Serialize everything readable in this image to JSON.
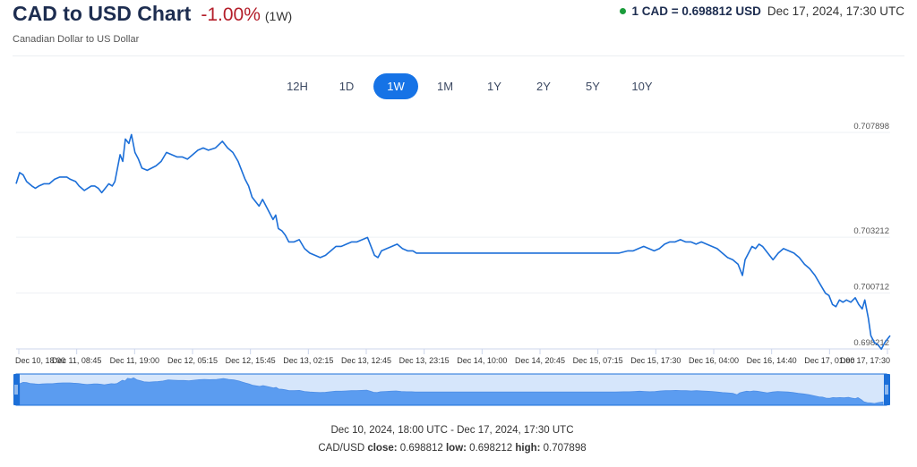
{
  "header": {
    "title": "CAD to USD Chart",
    "change": "-1.00%",
    "period": "(1W)",
    "subtitle": "Canadian Dollar to US Dollar",
    "rate": "1 CAD = 0.698812 USD",
    "timestamp": "Dec 17, 2024, 17:30 UTC"
  },
  "range_buttons": [
    {
      "label": "12H"
    },
    {
      "label": "1D"
    },
    {
      "label": "1W",
      "active": true
    },
    {
      "label": "1M"
    },
    {
      "label": "1Y"
    },
    {
      "label": "2Y"
    },
    {
      "label": "5Y"
    },
    {
      "label": "10Y"
    }
  ],
  "colors": {
    "line": "#1c6fd8",
    "navigator_fill": "#5b9cf0",
    "navigator_bg": "#d6e6fb",
    "active_button": "#1673e6",
    "negative_change": "#b41e2a",
    "live_dot": "#1a9c3a"
  },
  "footer": {
    "range": "Dec 10, 2024, 18:00 UTC - Dec 17, 2024, 17:30 UTC",
    "pair": "CAD/USD",
    "close_label": "close:",
    "close": "0.698812",
    "low_label": "low:",
    "low": "0.698212",
    "high_label": "high:",
    "high": "0.707898"
  },
  "chart_data": {
    "type": "line",
    "series": [
      {
        "name": "CAD/USD"
      }
    ],
    "x_tick_labels": [
      "Dec 10, 18:00",
      "Dec 11, 08:45",
      "Dec 11, 19:00",
      "Dec 12, 05:15",
      "Dec 12, 15:45",
      "Dec 13, 02:15",
      "Dec 13, 12:45",
      "Dec 13, 23:15",
      "Dec 14, 10:00",
      "Dec 14, 20:45",
      "Dec 15, 07:15",
      "Dec 15, 17:30",
      "Dec 16, 04:00",
      "Dec 16, 14:40",
      "Dec 17, 01:00",
      "Dec 17, 17:30"
    ],
    "y_tick_labels": [
      "0.707898",
      "0.703212",
      "0.700712",
      "0.698212"
    ],
    "ylim": [
      0.698212,
      0.707898
    ],
    "grid": true,
    "points": [
      [
        0,
        0.7056
      ],
      [
        0.004,
        0.7061
      ],
      [
        0.008,
        0.706
      ],
      [
        0.012,
        0.7057
      ],
      [
        0.018,
        0.7055
      ],
      [
        0.022,
        0.7054
      ],
      [
        0.026,
        0.7055
      ],
      [
        0.032,
        0.7056
      ],
      [
        0.038,
        0.7056
      ],
      [
        0.044,
        0.7058
      ],
      [
        0.05,
        0.7059
      ],
      [
        0.054,
        0.7059
      ],
      [
        0.058,
        0.7059
      ],
      [
        0.062,
        0.7058
      ],
      [
        0.068,
        0.7057
      ],
      [
        0.072,
        0.7055
      ],
      [
        0.075,
        0.7054
      ],
      [
        0.078,
        0.7053
      ],
      [
        0.082,
        0.7054
      ],
      [
        0.086,
        0.7055
      ],
      [
        0.09,
        0.7055
      ],
      [
        0.094,
        0.7054
      ],
      [
        0.098,
        0.7052
      ],
      [
        0.102,
        0.7054
      ],
      [
        0.106,
        0.7056
      ],
      [
        0.11,
        0.7055
      ],
      [
        0.113,
        0.7057
      ],
      [
        0.116,
        0.7063
      ],
      [
        0.119,
        0.7069
      ],
      [
        0.122,
        0.7066
      ],
      [
        0.125,
        0.7076
      ],
      [
        0.129,
        0.7074
      ],
      [
        0.132,
        0.7078
      ],
      [
        0.136,
        0.707
      ],
      [
        0.14,
        0.7067
      ],
      [
        0.144,
        0.7063
      ],
      [
        0.15,
        0.7062
      ],
      [
        0.155,
        0.7063
      ],
      [
        0.16,
        0.7064
      ],
      [
        0.166,
        0.7066
      ],
      [
        0.172,
        0.707
      ],
      [
        0.178,
        0.7069
      ],
      [
        0.184,
        0.7068
      ],
      [
        0.19,
        0.7068
      ],
      [
        0.196,
        0.7067
      ],
      [
        0.202,
        0.7069
      ],
      [
        0.208,
        0.7071
      ],
      [
        0.214,
        0.7072
      ],
      [
        0.22,
        0.7071
      ],
      [
        0.228,
        0.7072
      ],
      [
        0.236,
        0.7075
      ],
      [
        0.242,
        0.7072
      ],
      [
        0.248,
        0.707
      ],
      [
        0.254,
        0.7066
      ],
      [
        0.258,
        0.7062
      ],
      [
        0.262,
        0.7058
      ],
      [
        0.266,
        0.7055
      ],
      [
        0.27,
        0.705
      ],
      [
        0.274,
        0.7048
      ],
      [
        0.278,
        0.7046
      ],
      [
        0.282,
        0.7049
      ],
      [
        0.286,
        0.7046
      ],
      [
        0.29,
        0.7043
      ],
      [
        0.294,
        0.704
      ],
      [
        0.297,
        0.7042
      ],
      [
        0.3,
        0.7036
      ],
      [
        0.304,
        0.7035
      ],
      [
        0.308,
        0.7033
      ],
      [
        0.312,
        0.703
      ],
      [
        0.318,
        0.703
      ],
      [
        0.324,
        0.7031
      ],
      [
        0.33,
        0.7027
      ],
      [
        0.336,
        0.7025
      ],
      [
        0.342,
        0.7024
      ],
      [
        0.348,
        0.7023
      ],
      [
        0.354,
        0.7024
      ],
      [
        0.36,
        0.7026
      ],
      [
        0.366,
        0.7028
      ],
      [
        0.372,
        0.7028
      ],
      [
        0.378,
        0.7029
      ],
      [
        0.384,
        0.703
      ],
      [
        0.39,
        0.703
      ],
      [
        0.396,
        0.7031
      ],
      [
        0.402,
        0.7032
      ],
      [
        0.406,
        0.7028
      ],
      [
        0.41,
        0.7024
      ],
      [
        0.414,
        0.7023
      ],
      [
        0.418,
        0.7026
      ],
      [
        0.424,
        0.7027
      ],
      [
        0.43,
        0.7028
      ],
      [
        0.436,
        0.7029
      ],
      [
        0.442,
        0.7027
      ],
      [
        0.448,
        0.7026
      ],
      [
        0.454,
        0.7026
      ],
      [
        0.458,
        0.7025
      ],
      [
        0.47,
        0.7025
      ],
      [
        0.5,
        0.7025
      ],
      [
        0.52,
        0.7025
      ],
      [
        0.54,
        0.7025
      ],
      [
        0.56,
        0.7025
      ],
      [
        0.58,
        0.7025
      ],
      [
        0.6,
        0.7025
      ],
      [
        0.62,
        0.7025
      ],
      [
        0.64,
        0.7025
      ],
      [
        0.66,
        0.7025
      ],
      [
        0.68,
        0.7025
      ],
      [
        0.69,
        0.7025
      ],
      [
        0.7,
        0.7026
      ],
      [
        0.706,
        0.7026
      ],
      [
        0.712,
        0.7027
      ],
      [
        0.718,
        0.7028
      ],
      [
        0.724,
        0.7027
      ],
      [
        0.73,
        0.7026
      ],
      [
        0.736,
        0.7027
      ],
      [
        0.742,
        0.7029
      ],
      [
        0.748,
        0.703
      ],
      [
        0.754,
        0.703
      ],
      [
        0.76,
        0.7031
      ],
      [
        0.766,
        0.703
      ],
      [
        0.772,
        0.703
      ],
      [
        0.778,
        0.7029
      ],
      [
        0.784,
        0.703
      ],
      [
        0.79,
        0.7029
      ],
      [
        0.796,
        0.7028
      ],
      [
        0.802,
        0.7027
      ],
      [
        0.808,
        0.7025
      ],
      [
        0.814,
        0.7023
      ],
      [
        0.82,
        0.7022
      ],
      [
        0.826,
        0.702
      ],
      [
        0.831,
        0.7015
      ],
      [
        0.834,
        0.7022
      ],
      [
        0.838,
        0.7025
      ],
      [
        0.842,
        0.7028
      ],
      [
        0.846,
        0.7027
      ],
      [
        0.85,
        0.7029
      ],
      [
        0.854,
        0.7028
      ],
      [
        0.858,
        0.7026
      ],
      [
        0.862,
        0.7024
      ],
      [
        0.866,
        0.7022
      ],
      [
        0.872,
        0.7025
      ],
      [
        0.878,
        0.7027
      ],
      [
        0.884,
        0.7026
      ],
      [
        0.89,
        0.7025
      ],
      [
        0.896,
        0.7023
      ],
      [
        0.902,
        0.702
      ],
      [
        0.908,
        0.7018
      ],
      [
        0.914,
        0.7015
      ],
      [
        0.92,
        0.7011
      ],
      [
        0.926,
        0.7007
      ],
      [
        0.93,
        0.7006
      ],
      [
        0.934,
        0.7002
      ],
      [
        0.938,
        0.7001
      ],
      [
        0.942,
        0.7004
      ],
      [
        0.946,
        0.7003
      ],
      [
        0.95,
        0.7004
      ],
      [
        0.955,
        0.7003
      ],
      [
        0.96,
        0.7005
      ],
      [
        0.964,
        0.7002
      ],
      [
        0.968,
        0.7
      ],
      [
        0.971,
        0.7004
      ],
      [
        0.975,
        0.6996
      ],
      [
        0.978,
        0.6988
      ],
      [
        0.982,
        0.6985
      ],
      [
        0.986,
        0.6984
      ],
      [
        0.99,
        0.6982
      ],
      [
        0.994,
        0.6985
      ],
      [
        1.0,
        0.69881
      ]
    ]
  }
}
